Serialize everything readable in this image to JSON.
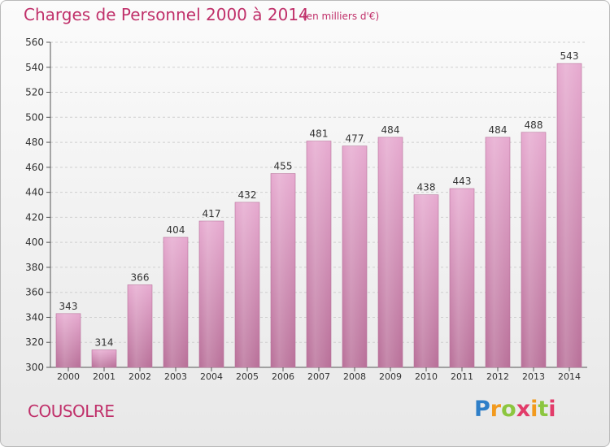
{
  "title": "Charges de Personnel 2000 à 2014",
  "subtitle": "(en milliers d'€)",
  "commune": "COUSOLRE",
  "logo": {
    "text": "Proxiti",
    "letters": [
      "P",
      "r",
      "o",
      "x",
      "i",
      "t",
      "i"
    ]
  },
  "colors": {
    "bar": "#d08ab4",
    "title": "#c0306a"
  },
  "chart_data": {
    "type": "bar",
    "categories": [
      "2000",
      "2001",
      "2002",
      "2003",
      "2004",
      "2005",
      "2006",
      "2007",
      "2008",
      "2009",
      "2010",
      "2011",
      "2012",
      "2013",
      "2014"
    ],
    "values": [
      343,
      314,
      366,
      404,
      417,
      432,
      455,
      481,
      477,
      484,
      438,
      443,
      484,
      488,
      543
    ],
    "ylim": [
      300,
      560
    ],
    "yticks": [
      300,
      320,
      340,
      360,
      380,
      400,
      420,
      440,
      460,
      480,
      500,
      520,
      540,
      560
    ],
    "grid": true,
    "xlabel": "",
    "ylabel": ""
  }
}
